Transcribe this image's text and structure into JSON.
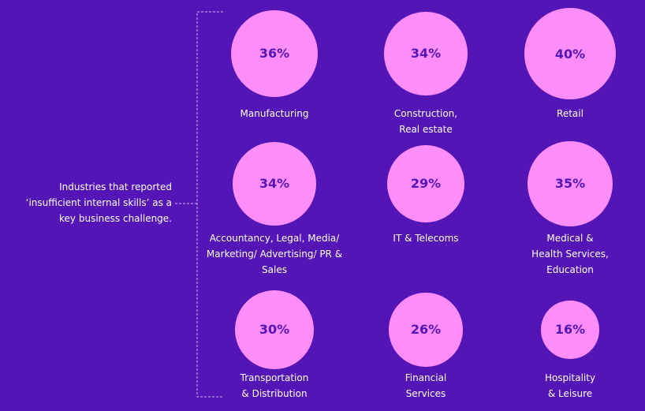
{
  "colors": {
    "background": "#5315b5",
    "bubble": "#ff8dfb",
    "value_text": "#5315b5",
    "label_text": "#ffffff",
    "bracket": "#c7b3ee"
  },
  "callout": {
    "lines": [
      "Industries that reported",
      "‘insufficient internal skills’ as a",
      "key business challenge."
    ]
  },
  "chart_data": {
    "type": "bubble-grid",
    "grid": {
      "rows": 3,
      "columns": 3
    },
    "unit": "%",
    "max_value": 40,
    "items": [
      {
        "value": 36,
        "value_label": "36%",
        "label_lines": [
          "Manufacturing"
        ]
      },
      {
        "value": 34,
        "value_label": "34%",
        "label_lines": [
          "Construction,",
          "Real estate"
        ]
      },
      {
        "value": 40,
        "value_label": "40%",
        "label_lines": [
          "Retail"
        ]
      },
      {
        "value": 34,
        "value_label": "34%",
        "label_lines": [
          "Accountancy, Legal, Media/",
          "Marketing/ Advertising/ PR &",
          "Sales"
        ]
      },
      {
        "value": 29,
        "value_label": "29%",
        "label_lines": [
          "IT & Telecoms"
        ]
      },
      {
        "value": 35,
        "value_label": "35%",
        "label_lines": [
          "Medical &",
          "Health Services,",
          "Education"
        ]
      },
      {
        "value": 30,
        "value_label": "30%",
        "label_lines": [
          "Transportation",
          "& Distribution"
        ]
      },
      {
        "value": 26,
        "value_label": "26%",
        "label_lines": [
          "Financial",
          "Services"
        ]
      },
      {
        "value": 16,
        "value_label": "16%",
        "label_lines": [
          "Hospitality",
          "& Leisure"
        ]
      }
    ]
  }
}
